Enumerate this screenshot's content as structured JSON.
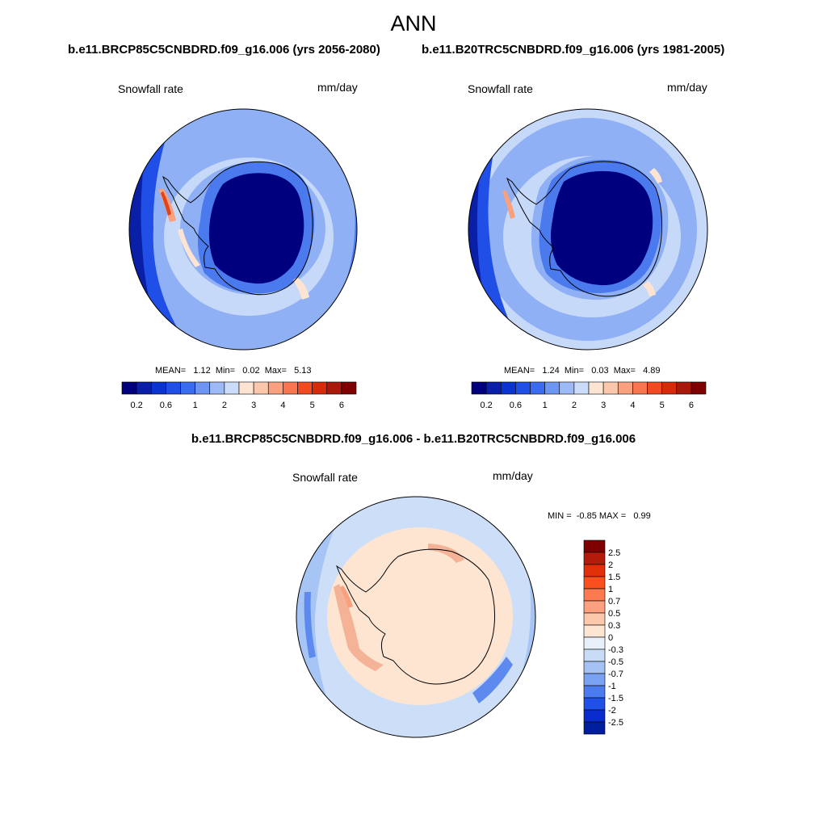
{
  "title": "ANN",
  "panel1": {
    "case_title": "b.e11.BRCP85C5CNBDRD.f09_g16.006 (yrs 2056-2080)",
    "var_label": "Snowfall rate",
    "units": "mm/day",
    "stats": "MEAN=   1.12  Min=   0.02  Max=   5.13"
  },
  "panel2": {
    "case_title": "b.e11.B20TRC5CNBDRD.f09_g16.006 (yrs 1981-2005)",
    "var_label": "Snowfall rate",
    "units": "mm/day",
    "stats": "MEAN=   1.24  Min=   0.03  Max=   4.89"
  },
  "diff_panel": {
    "title": "b.e11.BRCP85C5CNBDRD.f09_g16.006 - b.e11.B20TRC5CNBDRD.f09_g16.006",
    "var_label": "Snowfall rate",
    "units": "mm/day",
    "stats": "MIN =  -0.85 MAX =   0.99"
  },
  "colorbar_main": {
    "tick_labels": [
      "0.2",
      "0.6",
      "1",
      "2",
      "3",
      "4",
      "5",
      "6"
    ],
    "colors": [
      "#00007f",
      "#0a1fa8",
      "#0a34d2",
      "#1f4fe6",
      "#3a6cf0",
      "#6d96f3",
      "#9dbaf6",
      "#cadcf9",
      "#fde4d2",
      "#fbc7ab",
      "#f9a07f",
      "#f77650",
      "#f14a22",
      "#d62a0a",
      "#a8190a",
      "#7f0000"
    ]
  },
  "colorbar_diff": {
    "tick_labels": [
      "2.5",
      "2",
      "1.5",
      "1",
      "0.7",
      "0.5",
      "0.3",
      "0",
      "-0.3",
      "-0.5",
      "-0.7",
      "-1",
      "-1.5",
      "-2",
      "-2.5"
    ],
    "colors": [
      "#7f0000",
      "#b31c0a",
      "#e0300a",
      "#fa5020",
      "#fb7a50",
      "#fca07f",
      "#fcc8ab",
      "#fde5d2",
      "#e8f0fa",
      "#c8dcf6",
      "#a4c2f4",
      "#7aa2f2",
      "#4b7cef",
      "#1f50e8",
      "#0a2ccc",
      "#001f9e"
    ]
  },
  "map_colors": {
    "deep": "#00007f",
    "dark": "#0a1fa8",
    "blue": "#1f4fe6",
    "mid": "#4a7aee",
    "light": "#8fb0f4",
    "pale": "#c7d9f8",
    "peach": "#fde4d2",
    "salmon": "#f9a07f",
    "red": "#e0441a",
    "diff_base": "#fde5d2",
    "diff_ring": "#cddff8",
    "diff_ocean": "#a6c4f4",
    "diff_blue": "#5e8af0",
    "diff_pen": "#f4b396"
  }
}
